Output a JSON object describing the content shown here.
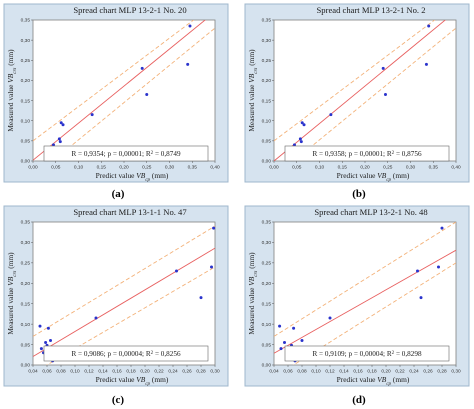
{
  "chart_data": [
    {
      "type": "scatter",
      "title": "Spread chart MLP 13-2-1 No. 20",
      "xlabel_main": "Predict value ",
      "xlabel_var": "VB",
      "xlabel_sub": "cp",
      "xlabel_unit": " (mm)",
      "ylabel_main": "Measured value ",
      "ylabel_var": "VB",
      "ylabel_sub": "crs",
      "ylabel_unit": " (mm)",
      "xlim": [
        0.0,
        0.4
      ],
      "ylim": [
        0.0,
        0.35
      ],
      "xticks": [
        "0,00",
        "0,05",
        "0,10",
        "0,15",
        "0,20",
        "0,25",
        "0,30",
        "0,35",
        "0,40"
      ],
      "yticks": [
        "0,00",
        "0,05",
        "0,10",
        "0,15",
        "0,20",
        "0,25",
        "0,30",
        "0,35"
      ],
      "x": [
        0.045,
        0.052,
        0.058,
        0.06,
        0.062,
        0.066,
        0.08,
        0.095,
        0.13,
        0.24,
        0.25,
        0.34,
        0.345
      ],
      "y": [
        0.04,
        0.03,
        0.055,
        0.048,
        0.095,
        0.09,
        0.005,
        0.01,
        0.115,
        0.23,
        0.165,
        0.24,
        0.335
      ],
      "fit": {
        "slope": 0.92,
        "intercept": 0.002
      },
      "band": {
        "lower": [
          [
            0.0,
            -0.04
          ],
          [
            0.4,
            0.33
          ]
        ],
        "upper": [
          [
            0.0,
            0.05
          ],
          [
            0.4,
            0.39
          ]
        ]
      },
      "stats": "R = 0,9354; p = 0,00001; R",
      "stats_r2": " = 0,8749",
      "label": "(a)"
    },
    {
      "type": "scatter",
      "title": "Spread chart MLP 13-2-1 No. 2",
      "xlabel_main": "Predict value ",
      "xlabel_var": "VB",
      "xlabel_sub": "cp",
      "xlabel_unit": " (mm)",
      "ylabel_main": "Measured value ",
      "ylabel_var": "VB",
      "ylabel_sub": "crs",
      "ylabel_unit": " (mm)",
      "xlim": [
        0.0,
        0.4
      ],
      "ylim": [
        0.0,
        0.35
      ],
      "xticks": [
        "0,00",
        "0,05",
        "0,10",
        "0,15",
        "0,20",
        "0,25",
        "0,30",
        "0,35",
        "0,40"
      ],
      "yticks": [
        "0,00",
        "0,05",
        "0,10",
        "0,15",
        "0,20",
        "0,25",
        "0,30",
        "0,35"
      ],
      "x": [
        0.045,
        0.052,
        0.058,
        0.06,
        0.062,
        0.066,
        0.08,
        0.095,
        0.125,
        0.24,
        0.245,
        0.335,
        0.34
      ],
      "y": [
        0.04,
        0.03,
        0.055,
        0.048,
        0.095,
        0.09,
        0.005,
        0.01,
        0.115,
        0.23,
        0.165,
        0.24,
        0.335
      ],
      "fit": {
        "slope": 0.93,
        "intercept": 0.0
      },
      "band": {
        "lower": [
          [
            0.0,
            -0.04
          ],
          [
            0.4,
            0.33
          ]
        ],
        "upper": [
          [
            0.0,
            0.05
          ],
          [
            0.4,
            0.39
          ]
        ]
      },
      "stats": "R = 0,9358; p = 0,00001; R",
      "stats_r2": " = 0,8756",
      "label": "(b)"
    },
    {
      "type": "scatter",
      "title": "Spread chart MLP 13-1-1 No. 47",
      "xlabel_main": "Predict value ",
      "xlabel_var": "VB",
      "xlabel_sub": "cp",
      "xlabel_unit": " (mm)",
      "ylabel_main": "Measured value ",
      "ylabel_var": "VB",
      "ylabel_sub": "crs",
      "ylabel_unit": " (mm)",
      "xlim": [
        0.04,
        0.3
      ],
      "ylim": [
        0.0,
        0.35
      ],
      "xticks": [
        "0,04",
        "0,06",
        "0,08",
        "0,10",
        "0,12",
        "0,14",
        "0,16",
        "0,18",
        "0,20",
        "0,22",
        "0,24",
        "0,26",
        "0,28",
        "0,30"
      ],
      "yticks": [
        "0,00",
        "0,05",
        "0,10",
        "0,15",
        "0,20",
        "0,25",
        "0,30",
        "0,35"
      ],
      "x": [
        0.05,
        0.052,
        0.055,
        0.058,
        0.06,
        0.062,
        0.065,
        0.068,
        0.13,
        0.245,
        0.28,
        0.295,
        0.298
      ],
      "y": [
        0.095,
        0.04,
        0.03,
        0.055,
        0.048,
        0.09,
        0.06,
        0.01,
        0.115,
        0.23,
        0.165,
        0.24,
        0.335
      ],
      "fit": {
        "slope": 1.02,
        "intercept": -0.02
      },
      "band": {
        "lower": [
          [
            0.04,
            -0.02
          ],
          [
            0.3,
            0.24
          ]
        ],
        "upper": [
          [
            0.04,
            0.07
          ],
          [
            0.3,
            0.34
          ]
        ]
      },
      "stats": "R = 0,9086; p = 0,00004; R",
      "stats_r2": " = 0,8256",
      "label": "(c)"
    },
    {
      "type": "scatter",
      "title": "Spread chart MLP 13-2-1 No. 48",
      "xlabel_main": "Predict value ",
      "xlabel_var": "VB",
      "xlabel_sub": "cp",
      "xlabel_unit": " (mm)",
      "ylabel_main": "Measured value ",
      "ylabel_var": "VB",
      "ylabel_sub": "crs",
      "ylabel_unit": " (mm)",
      "xlim": [
        0.04,
        0.3
      ],
      "ylim": [
        0.0,
        0.35
      ],
      "xticks": [
        "0,04",
        "0,06",
        "0,08",
        "0,10",
        "0,12",
        "0,14",
        "0,16",
        "0,18",
        "0,20",
        "0,22",
        "0,24",
        "0,26",
        "0,28",
        "0,30"
      ],
      "yticks": [
        "0,00",
        "0,05",
        "0,10",
        "0,15",
        "0,20",
        "0,25",
        "0,30",
        "0,35"
      ],
      "x": [
        0.048,
        0.05,
        0.055,
        0.06,
        0.065,
        0.068,
        0.07,
        0.08,
        0.12,
        0.245,
        0.25,
        0.275,
        0.28
      ],
      "y": [
        0.095,
        0.04,
        0.055,
        0.03,
        0.048,
        0.09,
        0.01,
        0.06,
        0.115,
        0.23,
        0.165,
        0.24,
        0.335
      ],
      "fit": {
        "slope": 0.97,
        "intercept": -0.01
      },
      "band": {
        "lower": [
          [
            0.04,
            -0.03
          ],
          [
            0.3,
            0.25
          ]
        ],
        "upper": [
          [
            0.04,
            0.07
          ],
          [
            0.3,
            0.35
          ]
        ]
      },
      "stats": "R = 0,9109; p = 0,00004; R",
      "stats_r2": " = 0,8298",
      "label": "(d)"
    }
  ]
}
